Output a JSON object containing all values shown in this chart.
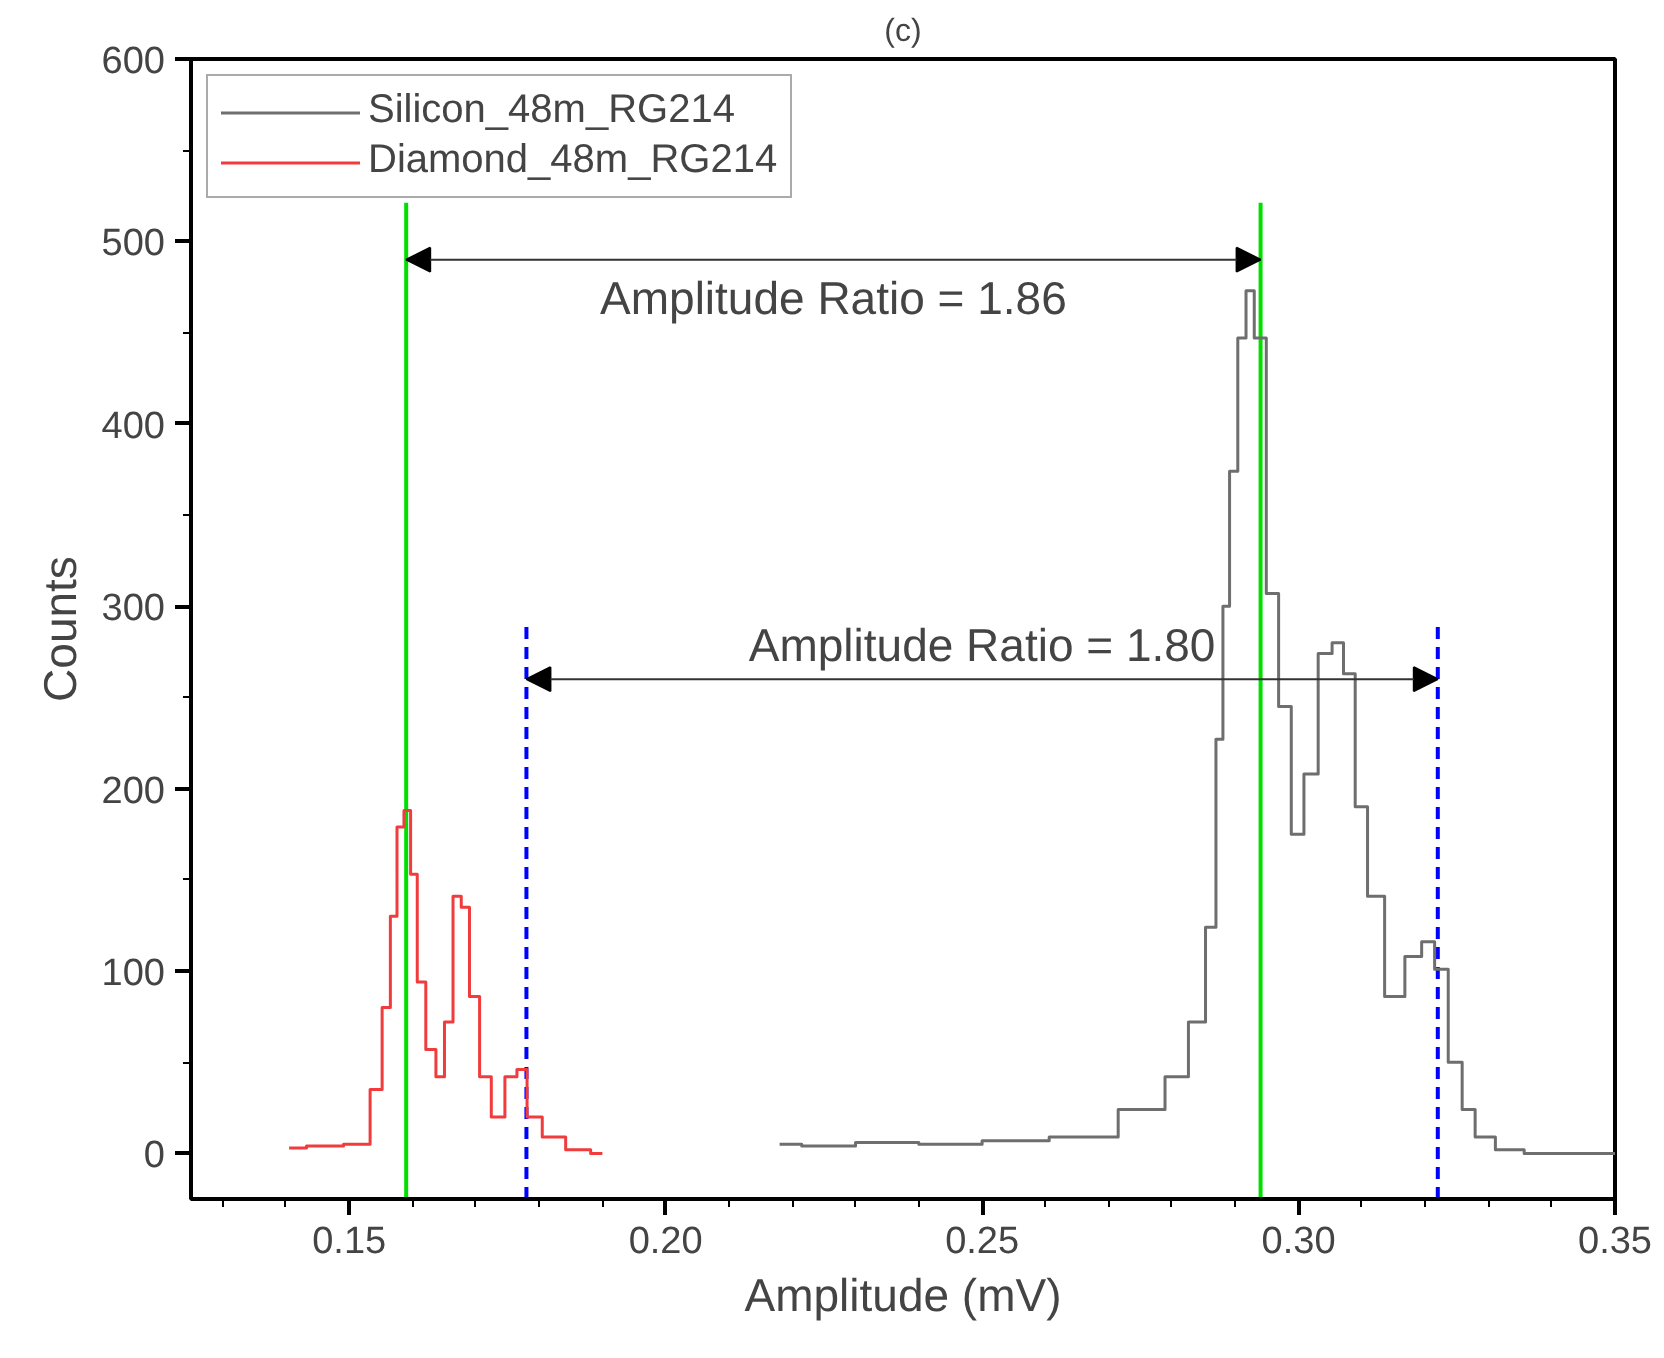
{
  "chart_data": {
    "type": "step",
    "title": "(c)",
    "xlabel": "Amplitude (mV)",
    "ylabel": "Counts",
    "xlim": [
      0.125,
      0.35
    ],
    "ylim": [
      -25,
      600
    ],
    "xticks": [
      {
        "value": 0.15,
        "label": "0.15"
      },
      {
        "value": 0.2,
        "label": "0.20"
      },
      {
        "value": 0.25,
        "label": "0.25"
      },
      {
        "value": 0.3,
        "label": "0.30"
      },
      {
        "value": 0.35,
        "label": "0.35"
      }
    ],
    "yticks": [
      0,
      100,
      200,
      300,
      400,
      500,
      600
    ],
    "grid": false,
    "legend": "top left",
    "series": [
      {
        "name": "Silicon_48m_RG214",
        "color": "#6e6e6e",
        "x": [
          0.218,
          0.225,
          0.235,
          0.245,
          0.255,
          0.2662,
          0.2768,
          0.281,
          0.2842,
          0.2864,
          0.2875,
          0.2886,
          0.2896,
          0.2912,
          0.2922,
          0.2938,
          0.296,
          0.2977,
          0.3,
          0.3017,
          0.3045,
          0.3061,
          0.3081,
          0.3098,
          0.312,
          0.3152,
          0.3184,
          0.3205,
          0.3225,
          0.3248,
          0.3269,
          0.3289,
          0.3333,
          0.338,
          0.35
        ],
        "values": [
          5,
          4,
          6,
          5,
          7,
          9,
          24,
          42,
          72,
          124,
          227,
          300,
          374,
          447,
          473,
          447,
          307,
          245,
          175,
          208,
          274,
          280,
          263,
          190,
          141,
          86,
          108,
          116,
          101,
          50,
          24,
          9,
          2,
          0,
          0
        ]
      },
      {
        "name": "Diamond_48m_RG214",
        "color": "#f03c3c",
        "x": [
          0.1405,
          0.146,
          0.1522,
          0.1544,
          0.156,
          0.157,
          0.1581,
          0.1592,
          0.1602,
          0.1613,
          0.1629,
          0.1645,
          0.1656,
          0.1672,
          0.1682,
          0.1698,
          0.1714,
          0.1735,
          0.1757,
          0.1773,
          0.1789,
          0.1821,
          0.1863,
          0.19
        ],
        "values": [
          3,
          4,
          5,
          35,
          80,
          130,
          179,
          188,
          153,
          94,
          57,
          42,
          72,
          141,
          135,
          86,
          42,
          20,
          42,
          46,
          20,
          9,
          2,
          0
        ]
      }
    ],
    "ref_lines": [
      {
        "axis": "x",
        "value": 0.159,
        "color": "#00e000",
        "line_style": "solid"
      },
      {
        "axis": "x",
        "value": 0.294,
        "color": "#00e000",
        "line_style": "solid"
      },
      {
        "axis": "x",
        "value": 0.178,
        "color": "#0000ff",
        "line_style": "dashed"
      },
      {
        "axis": "x",
        "value": 0.322,
        "color": "#0000ff",
        "line_style": "dashed"
      }
    ],
    "annotations": [
      "Amplitude Ratio = 1.86",
      "Amplitude Ratio = 1.80"
    ]
  }
}
